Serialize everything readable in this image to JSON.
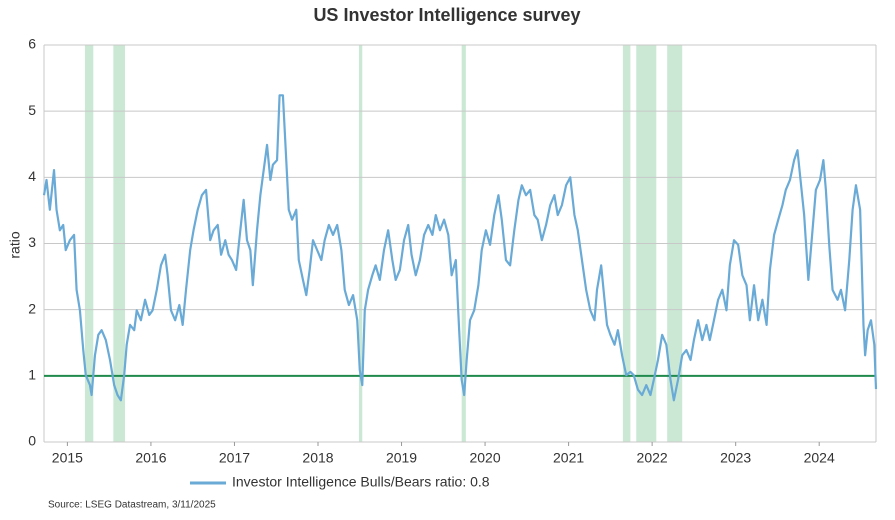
{
  "chart_data": {
    "type": "line",
    "title": "US Investor Intelligence survey",
    "y_label": "ratio",
    "source": "Source: LSEG Datastream, 3/11/2025",
    "x": [
      2015.22,
      2015.25,
      2015.29,
      2015.34,
      2015.37,
      2015.41,
      2015.45,
      2015.48,
      2015.53,
      2015.58,
      2015.61,
      2015.65,
      2015.69,
      2015.72,
      2015.77,
      2015.79,
      2015.83,
      2015.87,
      2015.91,
      2015.96,
      2016.01,
      2016.06,
      2016.1,
      2016.14,
      2016.18,
      2016.21,
      2016.25,
      2016.3,
      2016.33,
      2016.38,
      2016.43,
      2016.48,
      2016.52,
      2016.57,
      2016.62,
      2016.67,
      2016.7,
      2016.74,
      2016.79,
      2016.84,
      2016.88,
      2016.92,
      2016.97,
      2017.01,
      2017.06,
      2017.11,
      2017.16,
      2017.21,
      2017.25,
      2017.3,
      2017.34,
      2017.39,
      2017.43,
      2017.47,
      2017.52,
      2017.57,
      2017.61,
      2017.65,
      2017.69,
      2017.72,
      2017.77,
      2017.81,
      2017.85,
      2017.89,
      2017.93,
      2017.96,
      2018.01,
      2018.04,
      2018.08,
      2018.12,
      2018.15,
      2018.19,
      2018.24,
      2018.27,
      2018.32,
      2018.36,
      2018.4,
      2018.44,
      2018.49,
      2018.54,
      2018.58,
      2018.63,
      2018.68,
      2018.73,
      2018.78,
      2018.82,
      2018.87,
      2018.92,
      2018.97,
      2019.0,
      2019.03,
      2019.06,
      2019.1,
      2019.15,
      2019.19,
      2019.24,
      2019.29,
      2019.34,
      2019.39,
      2019.43,
      2019.48,
      2019.53,
      2019.58,
      2019.62,
      2019.67,
      2019.72,
      2019.77,
      2019.82,
      2019.87,
      2019.91,
      2019.96,
      2020.01,
      2020.06,
      2020.1,
      2020.15,
      2020.19,
      2020.22,
      2020.25,
      2020.28,
      2020.32,
      2020.37,
      2020.42,
      2020.46,
      2020.51,
      2020.56,
      2020.61,
      2020.66,
      2020.7,
      2020.75,
      2020.8,
      2020.85,
      2020.9,
      2020.94,
      2020.99,
      2021.04,
      2021.09,
      2021.13,
      2021.18,
      2021.23,
      2021.28,
      2021.33,
      2021.37,
      2021.42,
      2021.47,
      2021.52,
      2021.57,
      2021.61,
      2021.66,
      2021.71,
      2021.76,
      2021.81,
      2021.84,
      2021.89,
      2021.93,
      2021.96,
      2022.0,
      2022.05,
      2022.09,
      2022.14,
      2022.19,
      2022.24,
      2022.28,
      2022.33,
      2022.38,
      2022.43,
      2022.48,
      2022.52,
      2022.57,
      2022.62,
      2022.67,
      2022.72,
      2022.76,
      2022.81,
      2022.86,
      2022.91,
      2022.96,
      2023.0,
      2023.05,
      2023.1,
      2023.15,
      2023.19,
      2023.24,
      2023.29,
      2023.34,
      2023.39,
      2023.43,
      2023.48,
      2023.53,
      2023.58,
      2023.63,
      2023.67,
      2023.72,
      2023.77,
      2023.82,
      2023.87,
      2023.91,
      2023.96,
      2024.01,
      2024.06,
      2024.1,
      2024.15,
      2024.2,
      2024.24,
      2024.27,
      2024.32,
      2024.37,
      2024.42,
      2024.46,
      2024.51,
      2024.55,
      2024.58,
      2024.62,
      2024.66,
      2024.72,
      2024.76,
      2024.81,
      2024.86,
      2024.9,
      2024.94,
      2024.99,
      2025.03,
      2025.05,
      2025.08,
      2025.12,
      2025.16,
      2025.18
    ],
    "series": [
      {
        "name": "Investor Intelligence Bulls/Bears ratio: 0.8",
        "color": "#6aaad6",
        "values": [
          3.73,
          3.96,
          3.51,
          4.11,
          3.51,
          3.2,
          3.28,
          2.9,
          3.05,
          3.13,
          2.3,
          1.99,
          1.39,
          1.01,
          0.86,
          0.71,
          1.31,
          1.62,
          1.69,
          1.54,
          1.24,
          0.86,
          0.71,
          0.63,
          1.01,
          1.47,
          1.77,
          1.69,
          1.99,
          1.84,
          2.15,
          1.92,
          1.99,
          2.3,
          2.67,
          2.83,
          2.52,
          1.99,
          1.84,
          2.07,
          1.77,
          2.3,
          2.9,
          3.2,
          3.51,
          3.73,
          3.81,
          3.05,
          3.2,
          3.28,
          2.83,
          3.05,
          2.83,
          2.75,
          2.6,
          3.2,
          3.66,
          3.05,
          2.9,
          2.37,
          3.2,
          3.73,
          4.11,
          4.49,
          3.96,
          4.19,
          4.26,
          5.24,
          5.24,
          4.26,
          3.51,
          3.36,
          3.51,
          2.75,
          2.45,
          2.22,
          2.6,
          3.05,
          2.9,
          2.75,
          3.05,
          3.28,
          3.13,
          3.28,
          2.9,
          2.3,
          2.07,
          2.22,
          1.84,
          1.09,
          0.86,
          1.99,
          2.3,
          2.52,
          2.67,
          2.45,
          2.9,
          3.2,
          2.75,
          2.45,
          2.6,
          3.05,
          3.28,
          2.83,
          2.52,
          2.75,
          3.13,
          3.28,
          3.13,
          3.43,
          3.2,
          3.36,
          3.13,
          2.52,
          2.75,
          1.69,
          0.94,
          0.71,
          1.24,
          1.84,
          1.99,
          2.37,
          2.9,
          3.2,
          2.98,
          3.43,
          3.73,
          3.36,
          2.75,
          2.67,
          3.2,
          3.66,
          3.88,
          3.73,
          3.81,
          3.43,
          3.36,
          3.05,
          3.28,
          3.58,
          3.73,
          3.43,
          3.58,
          3.88,
          4.0,
          3.43,
          3.2,
          2.75,
          2.3,
          1.99,
          1.84,
          2.3,
          2.67,
          2.15,
          1.77,
          1.62,
          1.47,
          1.69,
          1.31,
          1.01,
          1.06,
          1.01,
          0.79,
          0.71,
          0.86,
          0.71,
          0.94,
          1.24,
          1.62,
          1.47,
          0.94,
          0.63,
          0.94,
          1.31,
          1.39,
          1.24,
          1.54,
          1.84,
          1.54,
          1.77,
          1.54,
          1.84,
          2.15,
          2.3,
          1.99,
          2.67,
          3.05,
          2.98,
          2.52,
          2.37,
          1.84,
          2.37,
          1.84,
          2.15,
          1.77,
          2.6,
          3.13,
          3.36,
          3.58,
          3.81,
          3.96,
          4.26,
          4.41,
          4.04,
          3.43,
          2.45,
          3.2,
          3.81,
          3.96,
          4.26,
          3.81,
          2.98,
          2.3,
          2.15,
          2.3,
          1.99,
          2.75,
          3.51,
          3.88,
          3.51,
          1.77,
          1.31,
          1.69,
          1.84,
          1.47,
          0.8
        ]
      }
    ],
    "reference_line": {
      "value": 1,
      "color": "#1f8a4c"
    },
    "shaded_regions": [
      [
        2015.71,
        2015.81
      ],
      [
        2016.05,
        2016.19
      ],
      [
        2018.99,
        2019.03
      ],
      [
        2020.22,
        2020.27
      ],
      [
        2022.15,
        2022.24
      ],
      [
        2022.31,
        2022.55
      ],
      [
        2022.68,
        2022.86
      ]
    ],
    "shade_color": "#cbe8d5",
    "xlim": [
      2015.22,
      2025.18
    ],
    "xticks": [
      {
        "value": 2015.5,
        "label": "2015"
      },
      {
        "value": 2016.5,
        "label": "2016"
      },
      {
        "value": 2017.5,
        "label": "2017"
      },
      {
        "value": 2018.5,
        "label": "2018"
      },
      {
        "value": 2019.5,
        "label": "2019"
      },
      {
        "value": 2020.5,
        "label": "2020"
      },
      {
        "value": 2021.5,
        "label": "2021"
      },
      {
        "value": 2022.5,
        "label": "2022"
      },
      {
        "value": 2023.5,
        "label": "2023"
      },
      {
        "value": 2024.5,
        "label": "2024"
      }
    ],
    "ylim": [
      0,
      6
    ],
    "yticks": [
      0,
      1,
      2,
      3,
      4,
      5,
      6
    ],
    "grid": true
  }
}
